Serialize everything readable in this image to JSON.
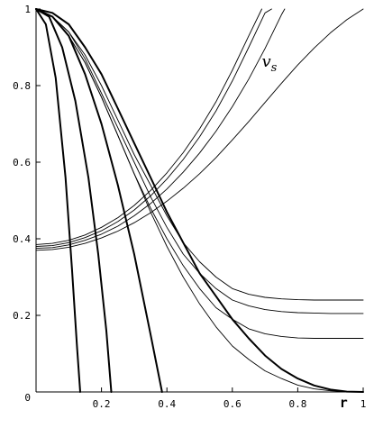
{
  "chart_data": {
    "type": "line",
    "title": "",
    "xlabel": "r",
    "ylabel": "",
    "xlim": [
      0,
      1
    ],
    "ylim": [
      0,
      1
    ],
    "x_ticks": [
      "0.2",
      "0.4",
      "0.6",
      "0.8",
      "1"
    ],
    "y_ticks": [
      "0.2",
      "0.4",
      "0.6",
      "0.8",
      "1"
    ],
    "origin_label": "0",
    "grid": false,
    "annotations": [
      {
        "text": "v",
        "subscript": "s",
        "x": 0.69,
        "y": 0.85
      }
    ],
    "series": [
      {
        "style": "bold",
        "x": [
          0,
          0.03,
          0.06,
          0.09,
          0.11,
          0.125,
          0.135
        ],
        "y": [
          1,
          0.96,
          0.82,
          0.56,
          0.32,
          0.12,
          0
        ]
      },
      {
        "style": "bold",
        "x": [
          0,
          0.04,
          0.08,
          0.12,
          0.16,
          0.19,
          0.215,
          0.23
        ],
        "y": [
          1,
          0.98,
          0.9,
          0.76,
          0.56,
          0.36,
          0.16,
          0
        ]
      },
      {
        "style": "bold",
        "x": [
          0,
          0.05,
          0.1,
          0.15,
          0.2,
          0.25,
          0.3,
          0.35,
          0.385
        ],
        "y": [
          1,
          0.98,
          0.93,
          0.83,
          0.7,
          0.54,
          0.36,
          0.15,
          0
        ]
      },
      {
        "style": "bold",
        "x": [
          0,
          0.05,
          0.1,
          0.15,
          0.2,
          0.25,
          0.3,
          0.35,
          0.4,
          0.45,
          0.5,
          0.55,
          0.6,
          0.65,
          0.7,
          0.75,
          0.8,
          0.85,
          0.9,
          0.95,
          1.0
        ],
        "y": [
          1,
          0.99,
          0.96,
          0.9,
          0.83,
          0.74,
          0.65,
          0.56,
          0.47,
          0.39,
          0.31,
          0.25,
          0.19,
          0.14,
          0.095,
          0.06,
          0.035,
          0.017,
          0.006,
          0.001,
          0
        ]
      },
      {
        "style": "thin",
        "x": [
          0,
          0.05,
          0.1,
          0.15,
          0.2,
          0.25,
          0.3,
          0.35,
          0.4,
          0.45,
          0.5,
          0.55,
          0.6,
          0.65,
          0.7,
          0.75,
          0.8,
          0.85,
          0.9,
          0.95,
          1.0
        ],
        "y": [
          1,
          0.98,
          0.93,
          0.86,
          0.77,
          0.67,
          0.57,
          0.47,
          0.38,
          0.3,
          0.23,
          0.17,
          0.12,
          0.085,
          0.055,
          0.035,
          0.018,
          0.008,
          0.003,
          0.001,
          0
        ]
      },
      {
        "style": "thin",
        "x": [
          0,
          0.05,
          0.1,
          0.15,
          0.2,
          0.25,
          0.3,
          0.35,
          0.4,
          0.45,
          0.5,
          0.55,
          0.6,
          0.65,
          0.7,
          0.75,
          0.8,
          0.85,
          0.9,
          0.95,
          1.0
        ],
        "y": [
          1,
          0.98,
          0.93,
          0.86,
          0.77,
          0.67,
          0.57,
          0.48,
          0.4,
          0.33,
          0.27,
          0.22,
          0.19,
          0.165,
          0.152,
          0.145,
          0.141,
          0.14,
          0.14,
          0.14,
          0.14
        ]
      },
      {
        "style": "thin",
        "x": [
          0,
          0.05,
          0.1,
          0.15,
          0.2,
          0.25,
          0.3,
          0.35,
          0.4,
          0.45,
          0.5,
          0.55,
          0.6,
          0.65,
          0.7,
          0.75,
          0.8,
          0.85,
          0.9,
          0.95,
          1.0
        ],
        "y": [
          1,
          0.98,
          0.94,
          0.87,
          0.78,
          0.69,
          0.6,
          0.51,
          0.43,
          0.36,
          0.31,
          0.27,
          0.24,
          0.225,
          0.215,
          0.21,
          0.207,
          0.206,
          0.205,
          0.205,
          0.205
        ]
      },
      {
        "style": "thin",
        "x": [
          0,
          0.05,
          0.1,
          0.15,
          0.2,
          0.25,
          0.3,
          0.35,
          0.4,
          0.45,
          0.5,
          0.55,
          0.6,
          0.65,
          0.7,
          0.75,
          0.8,
          0.85,
          0.9,
          0.95,
          1.0
        ],
        "y": [
          1,
          0.98,
          0.94,
          0.88,
          0.8,
          0.71,
          0.62,
          0.54,
          0.46,
          0.39,
          0.34,
          0.3,
          0.27,
          0.255,
          0.247,
          0.243,
          0.241,
          0.24,
          0.24,
          0.24,
          0.24
        ]
      },
      {
        "style": "thin",
        "x": [
          0,
          0.05,
          0.1,
          0.15,
          0.2,
          0.25,
          0.3,
          0.35,
          0.4,
          0.45,
          0.5,
          0.55,
          0.6,
          0.65,
          0.7,
          0.75,
          0.8,
          0.85,
          0.9,
          0.95,
          1.0
        ],
        "y": [
          0.37,
          0.372,
          0.378,
          0.388,
          0.402,
          0.42,
          0.442,
          0.468,
          0.498,
          0.532,
          0.57,
          0.612,
          0.658,
          0.706,
          0.756,
          0.806,
          0.854,
          0.898,
          0.938,
          0.972,
          1.0
        ]
      },
      {
        "style": "thin",
        "x": [
          0,
          0.05,
          0.1,
          0.15,
          0.2,
          0.25,
          0.3,
          0.35,
          0.4,
          0.45,
          0.5,
          0.55,
          0.6,
          0.65,
          0.7,
          0.72
        ],
        "y": [
          0.38,
          0.382,
          0.39,
          0.403,
          0.421,
          0.445,
          0.475,
          0.512,
          0.556,
          0.607,
          0.666,
          0.734,
          0.812,
          0.9,
          0.99,
          1.0
        ]
      },
      {
        "style": "thin",
        "x": [
          0,
          0.05,
          0.1,
          0.15,
          0.2,
          0.25,
          0.3,
          0.35,
          0.4,
          0.45,
          0.5,
          0.55,
          0.6,
          0.65,
          0.69
        ],
        "y": [
          0.385,
          0.388,
          0.396,
          0.41,
          0.43,
          0.455,
          0.487,
          0.526,
          0.572,
          0.625,
          0.687,
          0.758,
          0.84,
          0.93,
          1.0
        ]
      },
      {
        "style": "thin",
        "x": [
          0,
          0.05,
          0.1,
          0.15,
          0.2,
          0.25,
          0.3,
          0.35,
          0.4,
          0.45,
          0.5,
          0.55,
          0.6,
          0.65,
          0.7,
          0.75,
          0.76
        ],
        "y": [
          0.375,
          0.377,
          0.384,
          0.396,
          0.412,
          0.433,
          0.46,
          0.492,
          0.53,
          0.574,
          0.624,
          0.681,
          0.745,
          0.817,
          0.897,
          0.985,
          1.0
        ]
      }
    ]
  }
}
